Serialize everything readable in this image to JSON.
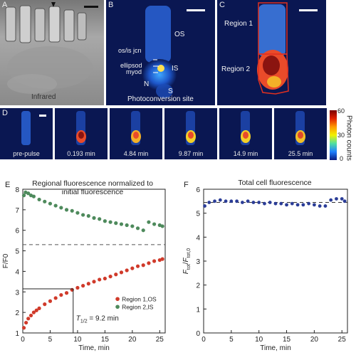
{
  "panels": {
    "a": {
      "label": "A",
      "caption": "Infrared"
    },
    "b": {
      "label": "B",
      "caption": "Photoconversion site",
      "annotations": {
        "os": "OS",
        "is": "IS",
        "n": "N",
        "s": "S",
        "osis": "os/is jcn",
        "ellipsoid": "ellipsod",
        "myoid": "myod"
      }
    },
    "c": {
      "label": "C",
      "region1": "Region 1",
      "region2": "Region 2"
    },
    "d": {
      "label": "D",
      "frames": [
        "pre-pulse",
        "0.193 min",
        "4.84 min",
        "9.87 min",
        "14.9 min",
        "25.5 min"
      ]
    },
    "colorbar": {
      "title": "Photon counts",
      "ticks": [
        "60",
        "30",
        "0"
      ]
    }
  },
  "colors": {
    "region1": "#d03a2a",
    "region2": "#4e8a5c",
    "total": "#2b3d97",
    "region_outline": "#e03020"
  },
  "chart_data": [
    {
      "panel": "E",
      "type": "scatter",
      "title": "Regional fluorescence normalized to initial fluorescence",
      "title_lines": [
        "Regional fluorescence normalized to",
        "initial fluorescence"
      ],
      "xlabel": "Time, min",
      "ylabel": "F/F0",
      "xlim": [
        0,
        26
      ],
      "ylim": [
        1,
        8
      ],
      "xticks": [
        "0",
        "5",
        "10",
        "15",
        "20",
        "25"
      ],
      "yticks": [
        "1",
        "2",
        "3",
        "4",
        "5",
        "6",
        "7",
        "8"
      ],
      "axis_break_y": 5.3,
      "legend_position": "lower-right",
      "series": [
        {
          "name": "Region 1,OS",
          "x": [
            0.2,
            0.6,
            1,
            1.5,
            2,
            2.5,
            3,
            4,
            5,
            6,
            7,
            8,
            9,
            10,
            11,
            12,
            13,
            14,
            15,
            16,
            17,
            18,
            19,
            20,
            21,
            22,
            23,
            24,
            25,
            25.5
          ],
          "y": [
            1.25,
            1.5,
            1.7,
            1.85,
            2.0,
            2.1,
            2.2,
            2.4,
            2.55,
            2.7,
            2.85,
            2.95,
            3.1,
            3.2,
            3.3,
            3.4,
            3.5,
            3.6,
            3.65,
            3.75,
            3.85,
            3.95,
            4.05,
            4.15,
            4.25,
            4.3,
            4.4,
            4.5,
            4.55,
            4.6
          ]
        },
        {
          "name": "Region 2,IS",
          "x": [
            0.2,
            0.5,
            1,
            1.5,
            2,
            3,
            4,
            5,
            6,
            7,
            8,
            9,
            10,
            11,
            12,
            13,
            14,
            15,
            16,
            17,
            18,
            19,
            20,
            21,
            22,
            23,
            24,
            25,
            25.5
          ],
          "y": [
            7.7,
            7.85,
            7.8,
            7.7,
            7.65,
            7.5,
            7.4,
            7.3,
            7.2,
            7.1,
            7.0,
            6.95,
            6.85,
            6.75,
            6.7,
            6.6,
            6.55,
            6.45,
            6.4,
            6.35,
            6.3,
            6.25,
            6.2,
            6.1,
            6.0,
            6.4,
            6.3,
            6.25,
            6.2
          ]
        }
      ],
      "annotation": {
        "label": "T",
        "subscript": "1/2",
        "text": " = 9.2 min",
        "x": 9.2,
        "y": 3.15
      }
    },
    {
      "panel": "F",
      "type": "scatter",
      "title": "Total cell fluorescence",
      "xlabel": "Time, min",
      "ylabel": "Ftot/Ftot,0",
      "xlim": [
        0,
        26
      ],
      "ylim": [
        0,
        6
      ],
      "xticks": [
        "0",
        "5",
        "10",
        "15",
        "20",
        "25"
      ],
      "yticks": [
        "0",
        "1",
        "2",
        "3",
        "4",
        "5",
        "6"
      ],
      "reference_line_y": 5.45,
      "series": [
        {
          "name": "",
          "x": [
            0.2,
            1,
            2,
            3,
            4,
            5,
            6,
            7,
            8,
            9,
            10,
            11,
            12,
            13,
            14,
            15,
            16,
            17,
            18,
            19,
            20,
            21,
            22,
            23,
            24,
            25,
            25.5
          ],
          "y": [
            5.3,
            5.45,
            5.5,
            5.55,
            5.5,
            5.5,
            5.5,
            5.45,
            5.5,
            5.45,
            5.45,
            5.4,
            5.45,
            5.4,
            5.4,
            5.35,
            5.4,
            5.35,
            5.35,
            5.4,
            5.35,
            5.3,
            5.3,
            5.55,
            5.6,
            5.6,
            5.5
          ]
        }
      ]
    }
  ]
}
